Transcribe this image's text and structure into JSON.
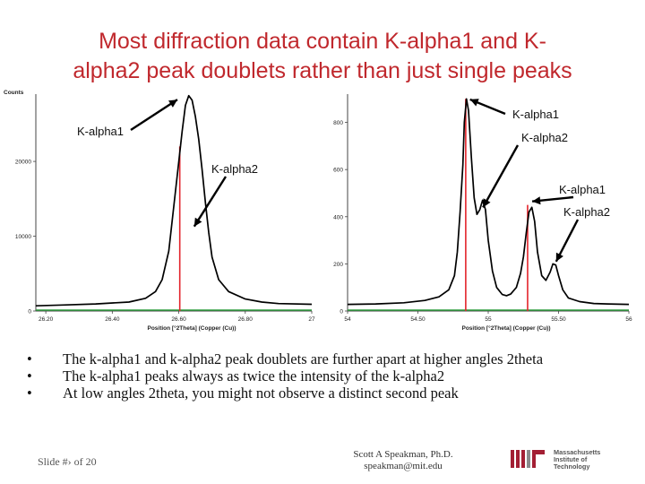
{
  "slide": {
    "title_line1": "Most diffraction data contain K-alpha1 and K-",
    "title_line2": "alpha2 peak doublets rather than just single peaks",
    "bullets": [
      "The k-alpha1 and k-alpha2 peak doublets are further apart at higher angles 2theta",
      "The k-alpha1 peaks always as twice the intensity of the k-alpha2",
      "At low angles 2theta, you might not observe a distinct second peak"
    ],
    "footer": {
      "slide_number": "Slide #› of 20",
      "author": "Scott A Speakman, Ph.D.",
      "email": "speakman@mit.edu"
    },
    "logo": {
      "line1": "Massachusetts",
      "line2": "Institute of",
      "line3": "Technology"
    }
  },
  "chart_data": [
    {
      "type": "line",
      "ylabel": "Counts",
      "xlabel": "Position [°2Theta] (Copper (Cu))",
      "xlim": [
        26.17,
        27.0
      ],
      "ylim": [
        0,
        29000
      ],
      "x_ticks": [
        "26.20",
        "26.40",
        "26.60",
        "26.80",
        "27"
      ],
      "y_ticks": [
        "0",
        "10000",
        "20000"
      ],
      "profile": [
        [
          26.17,
          700
        ],
        [
          26.25,
          800
        ],
        [
          26.35,
          950
        ],
        [
          26.45,
          1200
        ],
        [
          26.5,
          1700
        ],
        [
          26.53,
          2600
        ],
        [
          26.55,
          4200
        ],
        [
          26.57,
          8000
        ],
        [
          26.585,
          14000
        ],
        [
          26.6,
          20000
        ],
        [
          26.61,
          24000
        ],
        [
          26.62,
          27500
        ],
        [
          26.63,
          28800
        ],
        [
          26.64,
          28200
        ],
        [
          26.65,
          26000
        ],
        [
          26.66,
          23000
        ],
        [
          26.67,
          19000
        ],
        [
          26.68,
          14500
        ],
        [
          26.69,
          10500
        ],
        [
          26.7,
          7200
        ],
        [
          26.72,
          4200
        ],
        [
          26.75,
          2600
        ],
        [
          26.8,
          1600
        ],
        [
          26.85,
          1200
        ],
        [
          26.9,
          1000
        ],
        [
          27.0,
          900
        ]
      ],
      "sticks": [
        {
          "x": 26.603,
          "y": 22000
        }
      ],
      "annotations": [
        {
          "text": "K-alpha1",
          "x": 26.628,
          "y": 28500
        },
        {
          "text": "K-alpha2",
          "x": 26.668,
          "y": 12500
        }
      ]
    },
    {
      "type": "line",
      "xlabel": "Position [°2Theta] (Copper (Cu))",
      "xlim": [
        54.0,
        56.0
      ],
      "ylim": [
        0,
        920
      ],
      "x_ticks": [
        "54",
        "54.50",
        "55",
        "55.50",
        "56"
      ],
      "y_ticks": [
        "0",
        "200",
        "400",
        "600",
        "800"
      ],
      "profile": [
        [
          54.0,
          28
        ],
        [
          54.2,
          30
        ],
        [
          54.4,
          35
        ],
        [
          54.55,
          45
        ],
        [
          54.65,
          60
        ],
        [
          54.72,
          90
        ],
        [
          54.76,
          150
        ],
        [
          54.78,
          250
        ],
        [
          54.8,
          420
        ],
        [
          54.82,
          620
        ],
        [
          54.83,
          800
        ],
        [
          54.845,
          900
        ],
        [
          54.86,
          850
        ],
        [
          54.88,
          650
        ],
        [
          54.9,
          480
        ],
        [
          54.92,
          410
        ],
        [
          54.94,
          430
        ],
        [
          54.96,
          470
        ],
        [
          54.98,
          430
        ],
        [
          55.0,
          300
        ],
        [
          55.03,
          170
        ],
        [
          55.06,
          100
        ],
        [
          55.1,
          70
        ],
        [
          55.13,
          65
        ],
        [
          55.16,
          72
        ],
        [
          55.2,
          100
        ],
        [
          55.23,
          160
        ],
        [
          55.25,
          230
        ],
        [
          55.27,
          330
        ],
        [
          55.29,
          420
        ],
        [
          55.31,
          440
        ],
        [
          55.33,
          380
        ],
        [
          55.35,
          250
        ],
        [
          55.38,
          150
        ],
        [
          55.41,
          130
        ],
        [
          55.44,
          165
        ],
        [
          55.46,
          200
        ],
        [
          55.48,
          195
        ],
        [
          55.5,
          150
        ],
        [
          55.53,
          90
        ],
        [
          55.57,
          55
        ],
        [
          55.65,
          40
        ],
        [
          55.75,
          32
        ],
        [
          55.85,
          30
        ],
        [
          56.0,
          28
        ]
      ],
      "sticks": [
        {
          "x": 54.84,
          "y": 900
        },
        {
          "x": 55.28,
          "y": 450
        }
      ],
      "annotations": [
        {
          "text": "K-alpha1",
          "x": 54.845,
          "y": 905
        },
        {
          "text": "K-alpha2",
          "x": 54.95,
          "y": 470
        },
        {
          "text": "K-alpha1",
          "x": 55.3,
          "y": 442
        },
        {
          "text": "K-alpha2",
          "x": 55.47,
          "y": 202
        }
      ]
    }
  ],
  "colors": {
    "title": "#c0282d",
    "curve": "#000000",
    "stick": "#e3242b",
    "baseline": "#2e9e3e"
  }
}
